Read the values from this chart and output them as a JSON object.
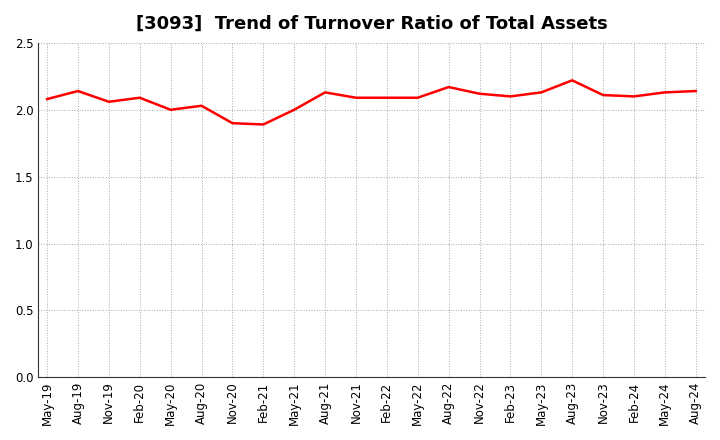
{
  "title": "[3093]  Trend of Turnover Ratio of Total Assets",
  "x_labels": [
    "May-19",
    "Aug-19",
    "Nov-19",
    "Feb-20",
    "May-20",
    "Aug-20",
    "Nov-20",
    "Feb-21",
    "May-21",
    "Aug-21",
    "Nov-21",
    "Feb-22",
    "May-22",
    "Aug-22",
    "Nov-22",
    "Feb-23",
    "May-23",
    "Aug-23",
    "Nov-23",
    "Feb-24",
    "May-24",
    "Aug-24"
  ],
  "y_values": [
    2.08,
    2.14,
    2.06,
    2.09,
    2.0,
    2.03,
    1.9,
    1.89,
    2.0,
    2.13,
    2.09,
    2.09,
    2.09,
    2.17,
    2.12,
    2.1,
    2.13,
    2.22,
    2.11,
    2.1,
    2.13,
    2.14
  ],
  "line_color": "#FF0000",
  "line_width": 1.8,
  "ylim": [
    0.0,
    2.5
  ],
  "yticks": [
    0.0,
    0.5,
    1.0,
    1.5,
    2.0,
    2.5
  ],
  "background_color": "#FFFFFF",
  "grid_color": "#AAAAAA",
  "title_fontsize": 13,
  "tick_fontsize": 8.5
}
